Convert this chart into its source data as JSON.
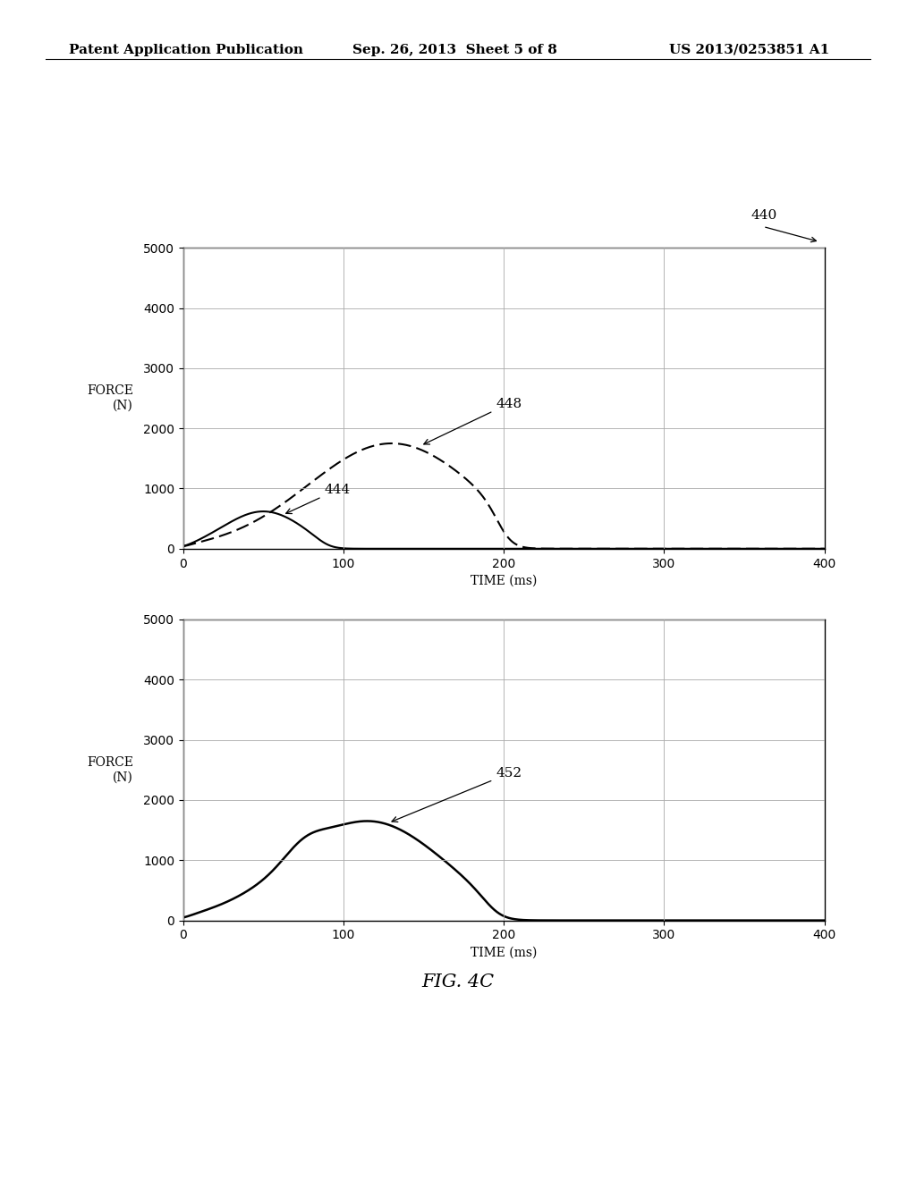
{
  "header_left": "Patent Application Publication",
  "header_mid": "Sep. 26, 2013  Sheet 5 of 8",
  "header_right": "US 2013/0253851 A1",
  "fig_caption": "FIG. 4C",
  "label_440": "440",
  "label_444": "444",
  "label_448": "448",
  "label_452": "452",
  "ylabel": "FORCE\n(N)",
  "xlabel": "TIME (ms)",
  "ylim": [
    0,
    5000
  ],
  "xlim": [
    0,
    400
  ],
  "yticks": [
    0,
    1000,
    2000,
    3000,
    4000,
    5000
  ],
  "xticks": [
    0,
    100,
    200,
    300,
    400
  ],
  "background_color": "#ffffff",
  "line_color": "#000000",
  "grid_color": "#aaaaaa",
  "header_fontsize": 11,
  "tick_fontsize": 10,
  "label_fontsize": 10,
  "annot_fontsize": 11,
  "caption_fontsize": 15
}
